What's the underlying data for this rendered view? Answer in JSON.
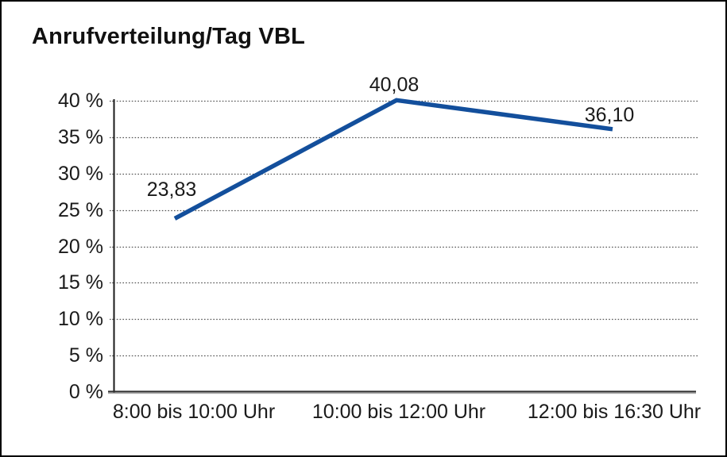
{
  "window": {
    "background": "#ffffff",
    "border_color": "#000000"
  },
  "chart_data": {
    "type": "line",
    "title": "Anrufverteilung/Tag VBL",
    "categories": [
      "8:00 bis 10:00 Uhr",
      "10:00 bis 12:00 Uhr",
      "12:00 bis 16:30 Uhr"
    ],
    "series": [
      {
        "name": "Anrufverteilung/Tag VBL",
        "values": [
          23.83,
          40.08,
          36.1
        ],
        "value_labels": [
          "23,83",
          "40,08",
          "36,10"
        ],
        "color": "#134F9C"
      }
    ],
    "xlabel": "",
    "ylabel": "",
    "ylim": [
      0,
      40
    ],
    "y_ticks": [
      0,
      5,
      10,
      15,
      20,
      25,
      30,
      35,
      40
    ],
    "y_tick_labels": [
      "0 %",
      "5 %",
      "10 %",
      "15 %",
      "20 %",
      "25 %",
      "30 %",
      "35 %",
      "40 %"
    ],
    "grid": "horizontal-dotted",
    "gridline_color": "#555555",
    "axis_color": "#1a1a1a",
    "baseline_color": "#2e2e2e",
    "baseline_shadow_color": "#9e9e9e",
    "text_color": "#1a1a1a",
    "legend_position": "none"
  }
}
